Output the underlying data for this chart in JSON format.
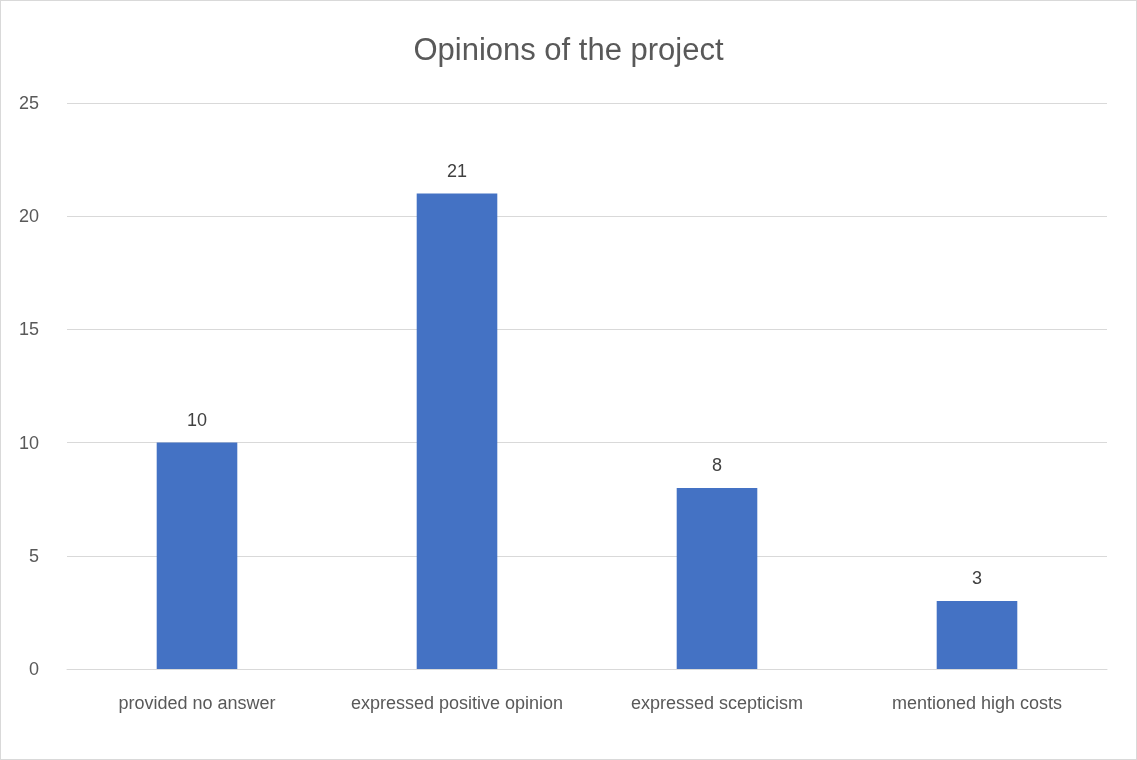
{
  "chart_data": {
    "type": "bar",
    "title": "Opinions of the project",
    "categories": [
      "provided no answer",
      "expressed positive opinion",
      "expressed scepticism",
      "mentioned high costs"
    ],
    "values": [
      10,
      21,
      8,
      3
    ],
    "color": "#4472c4",
    "ylim": [
      0,
      25
    ],
    "yticks": [
      0,
      5,
      10,
      15,
      20,
      25
    ],
    "grid": "y",
    "data_labels": true
  }
}
